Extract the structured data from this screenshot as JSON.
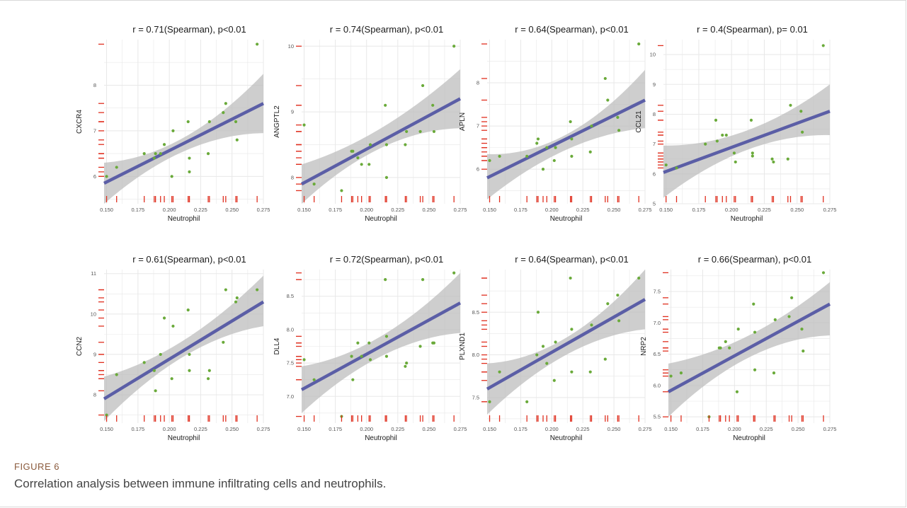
{
  "figure": {
    "label": "FIGURE 6",
    "caption": "Correlation analysis between immune infiltrating cells and neutrophils."
  },
  "colors": {
    "point": "#6aaa3a",
    "fit_line": "#5b5ea6",
    "band": "#bdbdbd",
    "rug": "#e03020",
    "grid": "#e8e8e8"
  },
  "chart_data": [
    {
      "type": "scatter",
      "title": "r = 0.71(Spearman), p<0.01",
      "xlabel": "Neutrophil",
      "ylabel": "CXCR4",
      "xlim": [
        0.148,
        0.275
      ],
      "ylim": [
        5.4,
        9.0
      ],
      "xticks": [
        0.15,
        0.175,
        0.2,
        0.225,
        0.25,
        0.275
      ],
      "xtick_labels": [
        "0.150",
        "0.175",
        "0.200",
        "0.225",
        "0.250",
        "0.275"
      ],
      "yticks": [
        6,
        7,
        8
      ],
      "ytick_labels": [
        "6",
        "7",
        "8"
      ],
      "x": [
        0.15,
        0.158,
        0.18,
        0.188,
        0.189,
        0.193,
        0.196,
        0.202,
        0.203,
        0.215,
        0.216,
        0.216,
        0.231,
        0.232,
        0.243,
        0.245,
        0.253,
        0.254,
        0.27
      ],
      "y": [
        6.0,
        6.2,
        6.5,
        6.4,
        6.5,
        6.5,
        6.7,
        6.0,
        7.0,
        7.2,
        6.4,
        6.1,
        6.5,
        7.2,
        7.4,
        7.6,
        7.2,
        6.8,
        8.9
      ],
      "fit": {
        "y_start": 5.85,
        "y_end": 7.6
      },
      "band": {
        "lower": [
          5.4,
          6.55,
          6.95
        ],
        "upper": [
          6.3,
          6.85,
          8.25
        ]
      }
    },
    {
      "type": "scatter",
      "title": "r = 0.74(Spearman), p<0.01",
      "xlabel": "Neutrophil",
      "ylabel": "ANGPTL2",
      "xlim": [
        0.148,
        0.275
      ],
      "ylim": [
        7.6,
        10.1
      ],
      "xticks": [
        0.15,
        0.175,
        0.2,
        0.225,
        0.25,
        0.275
      ],
      "xtick_labels": [
        "0.150",
        "0.175",
        "0.200",
        "0.225",
        "0.250",
        "0.275"
      ],
      "yticks": [
        8,
        9,
        10
      ],
      "ytick_labels": [
        "8",
        "9",
        "10"
      ],
      "x": [
        0.15,
        0.158,
        0.18,
        0.188,
        0.189,
        0.193,
        0.196,
        0.202,
        0.203,
        0.215,
        0.216,
        0.216,
        0.231,
        0.232,
        0.243,
        0.245,
        0.253,
        0.254,
        0.27
      ],
      "y": [
        8.8,
        7.9,
        7.8,
        8.4,
        8.4,
        8.3,
        8.2,
        8.2,
        8.5,
        9.1,
        8.5,
        8.0,
        8.5,
        8.7,
        8.7,
        9.4,
        9.1,
        8.7,
        10.0
      ],
      "fit": {
        "y_start": 7.9,
        "y_end": 9.2
      },
      "band": {
        "lower": [
          7.6,
          8.45,
          8.75
        ],
        "upper": [
          8.2,
          8.75,
          9.65
        ]
      }
    },
    {
      "type": "scatter",
      "title": "r = 0.64(Spearman), p<0.01",
      "xlabel": "Neutrophil",
      "ylabel": "APLN",
      "xlim": [
        0.148,
        0.275
      ],
      "ylim": [
        5.2,
        9.0
      ],
      "xticks": [
        0.15,
        0.175,
        0.2,
        0.225,
        0.25,
        0.275
      ],
      "xtick_labels": [
        "0.150",
        "0.175",
        "0.200",
        "0.225",
        "0.250",
        "0.275"
      ],
      "yticks": [
        6,
        7,
        8
      ],
      "ytick_labels": [
        "6",
        "7",
        "8"
      ],
      "x": [
        0.15,
        0.158,
        0.18,
        0.188,
        0.189,
        0.193,
        0.196,
        0.202,
        0.203,
        0.215,
        0.216,
        0.216,
        0.231,
        0.232,
        0.243,
        0.245,
        0.253,
        0.254,
        0.27
      ],
      "y": [
        6.2,
        6.3,
        6.3,
        6.6,
        6.7,
        6.0,
        6.5,
        6.2,
        6.5,
        7.1,
        6.7,
        6.3,
        6.4,
        7.0,
        8.1,
        7.6,
        7.2,
        6.9,
        8.9
      ],
      "fit": {
        "y_start": 5.8,
        "y_end": 7.6
      },
      "band": {
        "lower": [
          5.3,
          6.45,
          6.95
        ],
        "upper": [
          6.35,
          6.8,
          8.3
        ]
      }
    },
    {
      "type": "scatter",
      "title": "r = 0.4(Spearman), p= 0.01",
      "xlabel": "Neutrophil",
      "ylabel": "CCL21",
      "xlim": [
        0.148,
        0.275
      ],
      "ylim": [
        5.0,
        10.5
      ],
      "xticks": [
        0.15,
        0.175,
        0.2,
        0.225,
        0.25,
        0.275
      ],
      "xtick_labels": [
        "0.150",
        "0.175",
        "0.200",
        "0.225",
        "0.250",
        "0.275"
      ],
      "yticks": [
        5,
        6,
        7,
        8,
        9,
        10
      ],
      "ytick_labels": [
        "5",
        "6",
        "7",
        "8",
        "9",
        "10"
      ],
      "x": [
        0.15,
        0.158,
        0.18,
        0.188,
        0.189,
        0.193,
        0.196,
        0.202,
        0.203,
        0.215,
        0.216,
        0.216,
        0.231,
        0.232,
        0.243,
        0.245,
        0.253,
        0.254,
        0.27
      ],
      "y": [
        6.3,
        6.2,
        7.0,
        7.8,
        7.1,
        7.3,
        7.3,
        6.7,
        6.4,
        7.8,
        6.7,
        6.6,
        6.5,
        6.4,
        6.5,
        8.3,
        8.1,
        7.4,
        10.3
      ],
      "fit": {
        "y_start": 6.05,
        "y_end": 8.1
      },
      "band": {
        "lower": [
          5.2,
          6.8,
          7.3
        ],
        "upper": [
          6.95,
          7.45,
          9.0
        ]
      }
    },
    {
      "type": "scatter",
      "title": "r = 0.61(Spearman), p<0.01",
      "xlabel": "Neutrophil",
      "ylabel": "CCN2",
      "xlim": [
        0.148,
        0.275
      ],
      "ylim": [
        7.3,
        11.1
      ],
      "xticks": [
        0.15,
        0.175,
        0.2,
        0.225,
        0.25,
        0.275
      ],
      "xtick_labels": [
        "0.150",
        "0.175",
        "0.200",
        "0.225",
        "0.250",
        "0.275"
      ],
      "yticks": [
        8,
        9,
        10,
        11
      ],
      "ytick_labels": [
        "8",
        "9",
        "10",
        "11"
      ],
      "x": [
        0.15,
        0.158,
        0.18,
        0.188,
        0.189,
        0.193,
        0.196,
        0.202,
        0.203,
        0.215,
        0.216,
        0.216,
        0.231,
        0.232,
        0.243,
        0.245,
        0.253,
        0.254,
        0.27
      ],
      "y": [
        7.5,
        8.5,
        8.8,
        8.6,
        8.1,
        9.0,
        9.9,
        8.4,
        9.7,
        10.1,
        9.0,
        8.6,
        8.4,
        8.6,
        9.3,
        10.6,
        10.3,
        10.4,
        10.6
      ],
      "fit": {
        "y_start": 7.9,
        "y_end": 10.3
      },
      "band": {
        "lower": [
          7.35,
          8.95,
          9.7
        ],
        "upper": [
          8.45,
          9.35,
          10.95
        ]
      }
    },
    {
      "type": "scatter",
      "title": "r = 0.72(Spearman), p<0.01",
      "xlabel": "Neutrophil",
      "ylabel": "DLL4",
      "xlim": [
        0.148,
        0.275
      ],
      "ylim": [
        6.6,
        8.9
      ],
      "xticks": [
        0.15,
        0.175,
        0.2,
        0.225,
        0.25,
        0.275
      ],
      "xtick_labels": [
        "0.150",
        "0.175",
        "0.200",
        "0.225",
        "0.250",
        "0.275"
      ],
      "yticks": [
        7.0,
        7.5,
        8.0,
        8.5
      ],
      "ytick_labels": [
        "7.0",
        "7.5",
        "8.0",
        "8.5"
      ],
      "x": [
        0.15,
        0.158,
        0.18,
        0.188,
        0.189,
        0.193,
        0.196,
        0.202,
        0.203,
        0.215,
        0.216,
        0.216,
        0.231,
        0.232,
        0.243,
        0.245,
        0.253,
        0.254,
        0.27
      ],
      "y": [
        7.55,
        7.25,
        6.7,
        7.6,
        7.25,
        7.8,
        7.6,
        7.8,
        7.55,
        8.75,
        7.9,
        7.6,
        7.45,
        7.5,
        7.75,
        8.75,
        7.8,
        7.8,
        8.85
      ],
      "fit": {
        "y_start": 7.1,
        "y_end": 8.4
      },
      "band": {
        "lower": [
          6.75,
          7.6,
          7.95
        ],
        "upper": [
          7.45,
          7.9,
          8.85
        ]
      }
    },
    {
      "type": "scatter",
      "title": "r = 0.64(Spearman), p<0.01",
      "xlabel": "Neutrophil",
      "ylabel": "PLXND1",
      "xlim": [
        0.148,
        0.275
      ],
      "ylim": [
        7.2,
        9.0
      ],
      "xticks": [
        0.15,
        0.175,
        0.2,
        0.225,
        0.25,
        0.275
      ],
      "xtick_labels": [
        "0.150",
        "0.175",
        "0.200",
        "0.225",
        "0.250",
        "0.275"
      ],
      "yticks": [
        7.5,
        8.0,
        8.5
      ],
      "ytick_labels": [
        "7.5",
        "8.0",
        "8.5"
      ],
      "x": [
        0.15,
        0.158,
        0.18,
        0.188,
        0.189,
        0.193,
        0.196,
        0.202,
        0.203,
        0.215,
        0.216,
        0.216,
        0.231,
        0.232,
        0.243,
        0.245,
        0.253,
        0.254,
        0.27
      ],
      "y": [
        7.45,
        7.8,
        7.45,
        8.0,
        8.5,
        8.1,
        7.9,
        7.7,
        8.15,
        8.9,
        8.3,
        7.8,
        7.8,
        8.35,
        7.95,
        8.6,
        8.7,
        8.4,
        8.9
      ],
      "fit": {
        "y_start": 7.6,
        "y_end": 8.65
      },
      "band": {
        "lower": [
          7.3,
          8.0,
          8.3
        ],
        "upper": [
          7.9,
          8.2,
          9.0
        ]
      }
    },
    {
      "type": "scatter",
      "title": "r = 0.66(Spearman), p<0.01",
      "xlabel": "Neutrophil",
      "ylabel": "NRP2",
      "xlim": [
        0.148,
        0.275
      ],
      "ylim": [
        5.4,
        7.85
      ],
      "xticks": [
        0.15,
        0.175,
        0.2,
        0.225,
        0.25,
        0.275
      ],
      "xtick_labels": [
        "0.150",
        "0.175",
        "0.200",
        "0.225",
        "0.250",
        "0.275"
      ],
      "yticks": [
        5.5,
        6.0,
        6.5,
        7.0,
        7.5
      ],
      "ytick_labels": [
        "5.5",
        "6.0",
        "6.5",
        "7.0",
        "7.5"
      ],
      "x": [
        0.15,
        0.158,
        0.18,
        0.188,
        0.189,
        0.193,
        0.196,
        0.202,
        0.203,
        0.215,
        0.216,
        0.216,
        0.231,
        0.232,
        0.243,
        0.245,
        0.253,
        0.254,
        0.27
      ],
      "y": [
        6.15,
        6.2,
        5.5,
        6.6,
        6.6,
        6.7,
        6.6,
        5.9,
        6.9,
        7.3,
        6.85,
        6.25,
        6.2,
        7.05,
        7.1,
        7.4,
        6.9,
        6.55,
        7.8
      ],
      "fit": {
        "y_start": 5.9,
        "y_end": 7.3
      },
      "band": {
        "lower": [
          5.5,
          6.45,
          6.8
        ],
        "upper": [
          6.35,
          6.8,
          7.65
        ]
      }
    }
  ]
}
